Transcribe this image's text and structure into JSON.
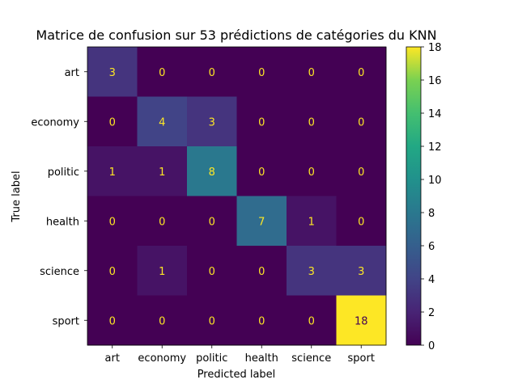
{
  "chart_data": {
    "type": "heatmap",
    "title": "Matrice de confusion sur 53 prédictions de catégories du KNN",
    "xlabel": "Predicted label",
    "ylabel": "True label",
    "x_categories": [
      "art",
      "economy",
      "politic",
      "health",
      "science",
      "sport"
    ],
    "y_categories": [
      "art",
      "economy",
      "politic",
      "health",
      "science",
      "sport"
    ],
    "matrix": [
      [
        3,
        0,
        0,
        0,
        0,
        0
      ],
      [
        0,
        4,
        3,
        0,
        0,
        0
      ],
      [
        1,
        1,
        8,
        0,
        0,
        0
      ],
      [
        0,
        0,
        0,
        7,
        1,
        0
      ],
      [
        0,
        1,
        0,
        0,
        3,
        3
      ],
      [
        0,
        0,
        0,
        0,
        0,
        18
      ]
    ],
    "colormap": "viridis",
    "colorbar": {
      "min": 0,
      "max": 18,
      "ticks": [
        0,
        2,
        4,
        6,
        8,
        10,
        12,
        14,
        16,
        18
      ]
    },
    "text_color_low": "#fde725",
    "text_color_high": "#440154"
  }
}
